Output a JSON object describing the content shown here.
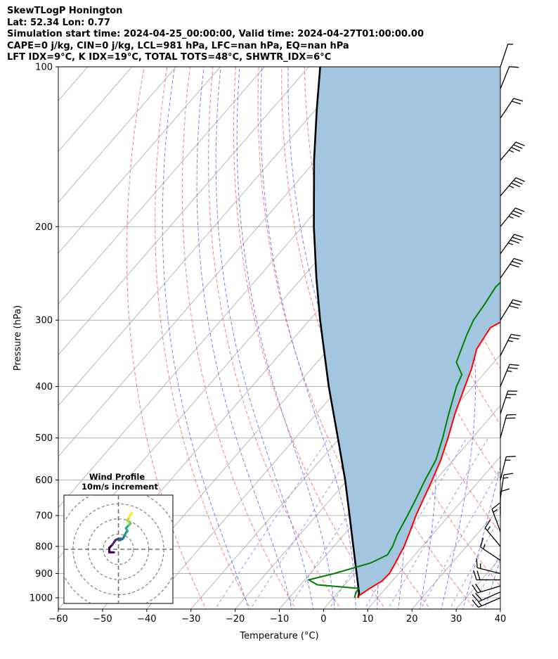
{
  "header": {
    "line1": "SkewTLogP Honington",
    "line2": "Lat: 52.34   Lon: 0.77",
    "line3": "Simulation start time: 2024-04-25_00:00:00, Valid time: 2024-04-27T01:00:00.00",
    "line4": "CAPE=0 j/kg, CIN=0 j/kg, LCL=981 hPa, LFC=nan hPa, EQ=nan hPa",
    "line5": "LFT IDX=9°C, K IDX=19°C, TOTAL TOTS=48°C, SHWTR_IDX=6°C"
  },
  "chart_data": [
    {
      "type": "line",
      "name": "skew-t",
      "xlabel": "Temperature (°C)",
      "ylabel": "Pressure (hPa)",
      "xlim": [
        -60,
        40
      ],
      "ylim": [
        1050,
        100
      ],
      "yscale": "log",
      "xticks": [
        -60,
        -50,
        -40,
        -30,
        -20,
        -10,
        0,
        10,
        20,
        30,
        40
      ],
      "xtick_labels": [
        "−60",
        "−50",
        "−40",
        "−30",
        "−20",
        "−10",
        "0",
        "10",
        "20",
        "30",
        "40"
      ],
      "yticks": [
        100,
        200,
        300,
        400,
        500,
        600,
        700,
        800,
        900,
        1000
      ],
      "grid": true,
      "colors": {
        "temperature": "#ff0000",
        "dewpoint": "#008000",
        "parcel": "#000000",
        "shade": "#a3c6e0",
        "dry_adiabat": "#ff6666",
        "moist_adiabat": "#6666ff",
        "mixing_ratio": "#7a7aee",
        "isotherm": "#b0b0b0"
      },
      "temperature": [
        {
          "p": 1000,
          "t": 5.6
        },
        {
          "p": 990,
          "t": 5.4
        },
        {
          "p": 960,
          "t": 6.4
        },
        {
          "p": 930,
          "t": 7.7
        },
        {
          "p": 900,
          "t": 7.9
        },
        {
          "p": 860,
          "t": 7.2
        },
        {
          "p": 800,
          "t": 5.9
        },
        {
          "p": 750,
          "t": 4.3
        },
        {
          "p": 700,
          "t": 2.5
        },
        {
          "p": 650,
          "t": 0.9
        },
        {
          "p": 600,
          "t": -0.8
        },
        {
          "p": 550,
          "t": -2.8
        },
        {
          "p": 500,
          "t": -5.5
        },
        {
          "p": 450,
          "t": -8.7
        },
        {
          "p": 400,
          "t": -11.8
        },
        {
          "p": 370,
          "t": -13.8
        },
        {
          "p": 340,
          "t": -16.5
        },
        {
          "p": 310,
          "t": -17.6
        },
        {
          "p": 290,
          "t": -14.3
        },
        {
          "p": 270,
          "t": -11.4
        },
        {
          "p": 245,
          "t": -8.4
        },
        {
          "p": 220,
          "t": -2.9
        },
        {
          "p": 200,
          "t": 0.6
        },
        {
          "p": 180,
          "t": 3.6
        },
        {
          "p": 160,
          "t": 7.0
        },
        {
          "p": 140,
          "t": 9.8
        },
        {
          "p": 120,
          "t": 13.8
        },
        {
          "p": 100,
          "t": 17.6
        }
      ],
      "dewpoint": [
        {
          "p": 1000,
          "t": 4.8
        },
        {
          "p": 985,
          "t": 4.3
        },
        {
          "p": 960,
          "t": 3.8
        },
        {
          "p": 945,
          "t": -6.2
        },
        {
          "p": 925,
          "t": -9.1
        },
        {
          "p": 900,
          "t": -4.6
        },
        {
          "p": 860,
          "t": 1.6
        },
        {
          "p": 830,
          "t": 3.8
        },
        {
          "p": 800,
          "t": 3.3
        },
        {
          "p": 760,
          "t": 2.0
        },
        {
          "p": 700,
          "t": 0.6
        },
        {
          "p": 650,
          "t": -0.8
        },
        {
          "p": 600,
          "t": -2.4
        },
        {
          "p": 550,
          "t": -3.9
        },
        {
          "p": 500,
          "t": -6.7
        },
        {
          "p": 450,
          "t": -10.1
        },
        {
          "p": 400,
          "t": -13.7
        },
        {
          "p": 380,
          "t": -14.8
        },
        {
          "p": 360,
          "t": -18.5
        },
        {
          "p": 320,
          "t": -21.5
        },
        {
          "p": 300,
          "t": -22.9
        },
        {
          "p": 280,
          "t": -23.5
        },
        {
          "p": 260,
          "t": -24.4
        },
        {
          "p": 240,
          "t": -23.8
        },
        {
          "p": 225,
          "t": -25.1
        },
        {
          "p": 210,
          "t": -28.9
        },
        {
          "p": 200,
          "t": -30.4
        },
        {
          "p": 190,
          "t": -28.0
        },
        {
          "p": 180,
          "t": -27.4
        },
        {
          "p": 170,
          "t": -27.8
        },
        {
          "p": 155,
          "t": -26.6
        },
        {
          "p": 140,
          "t": -24.1
        },
        {
          "p": 120,
          "t": -19.2
        },
        {
          "p": 100,
          "t": -12.8
        }
      ],
      "parcel": [
        {
          "p": 1000,
          "t": 5.6
        },
        {
          "p": 980,
          "t": 4.9
        },
        {
          "p": 900,
          "t": 0.5
        },
        {
          "p": 800,
          "t": -5.6
        },
        {
          "p": 700,
          "t": -12.5
        },
        {
          "p": 600,
          "t": -20.5
        },
        {
          "p": 500,
          "t": -30.4
        },
        {
          "p": 400,
          "t": -42.6
        },
        {
          "p": 300,
          "t": -57.6
        },
        {
          "p": 250,
          "t": -66.7
        },
        {
          "p": 200,
          "t": -77.4
        },
        {
          "p": 150,
          "t": -90.4
        },
        {
          "p": 120,
          "t": -99.9
        },
        {
          "p": 100,
          "t": -107.4
        }
      ],
      "wind_barbs": [
        {
          "p": 1000,
          "u": 7,
          "v": 3
        },
        {
          "p": 975,
          "u": 9,
          "v": 4
        },
        {
          "p": 950,
          "u": 10,
          "v": 3
        },
        {
          "p": 925,
          "u": 10,
          "v": 0
        },
        {
          "p": 900,
          "u": 8,
          "v": -2
        },
        {
          "p": 850,
          "u": 6,
          "v": -4
        },
        {
          "p": 800,
          "u": 5,
          "v": -6
        },
        {
          "p": 750,
          "u": 3,
          "v": -8
        },
        {
          "p": 700,
          "u": 0,
          "v": -6
        },
        {
          "p": 650,
          "u": -1,
          "v": -7
        },
        {
          "p": 600,
          "u": -2,
          "v": -8
        },
        {
          "p": 500,
          "u": -3,
          "v": -11
        },
        {
          "p": 450,
          "u": -4,
          "v": -12
        },
        {
          "p": 400,
          "u": -5,
          "v": -12
        },
        {
          "p": 350,
          "u": -6,
          "v": -12
        },
        {
          "p": 300,
          "u": -8,
          "v": -13
        },
        {
          "p": 250,
          "u": -9,
          "v": -13
        },
        {
          "p": 225,
          "u": -10,
          "v": -14
        },
        {
          "p": 200,
          "u": -12,
          "v": -15
        },
        {
          "p": 175,
          "u": -12,
          "v": -14
        },
        {
          "p": 150,
          "u": -11,
          "v": -13
        },
        {
          "p": 125,
          "u": -6,
          "v": -9
        },
        {
          "p": 110,
          "u": -2,
          "v": -5
        },
        {
          "p": 100,
          "u": -1,
          "v": -3
        }
      ]
    },
    {
      "type": "line",
      "name": "hodograph",
      "title": "Wind Profile",
      "subtitle": "10m/s increment",
      "rings_ms": [
        10,
        20,
        30,
        40
      ],
      "lim": [
        -18,
        18
      ],
      "trace_uv": [
        {
          "u": -3,
          "v": -2
        },
        {
          "u": -6,
          "v": -2
        },
        {
          "u": -6,
          "v": 1
        },
        {
          "u": -4,
          "v": 3
        },
        {
          "u": -2,
          "v": 6
        },
        {
          "u": 0,
          "v": 7
        },
        {
          "u": 2,
          "v": 7
        },
        {
          "u": 1,
          "v": 6
        },
        {
          "u": 3,
          "v": 7
        },
        {
          "u": 4,
          "v": 9
        },
        {
          "u": 5,
          "v": 11
        },
        {
          "u": 6,
          "v": 12
        },
        {
          "u": 5,
          "v": 14
        },
        {
          "u": 7,
          "v": 16
        },
        {
          "u": 8,
          "v": 17
        },
        {
          "u": 7,
          "v": 18
        },
        {
          "u": 6,
          "v": 19
        },
        {
          "u": 7,
          "v": 21
        },
        {
          "u": 8,
          "v": 23
        },
        {
          "u": 9,
          "v": 24
        }
      ]
    }
  ]
}
